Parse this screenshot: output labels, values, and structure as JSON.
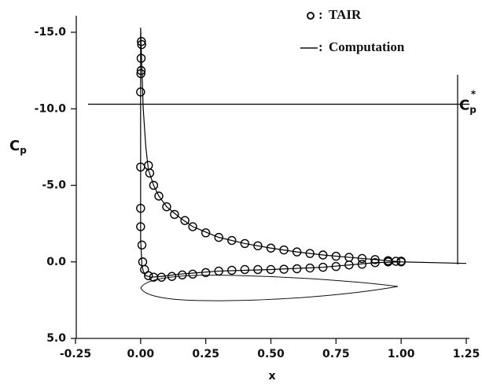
{
  "chart_data": {
    "type": "scatter_line",
    "xlabel": "x",
    "ylabel": {
      "base": "C",
      "sub": "p"
    },
    "xlim": [
      -0.25,
      1.25
    ],
    "ylim": [
      -15,
      5
    ],
    "y_inverted": true,
    "xticks": [
      {
        "value": -0.25,
        "label": "-0.25"
      },
      {
        "value": 0,
        "label": "0.00"
      },
      {
        "value": 0.25,
        "label": "0.25"
      },
      {
        "value": 0.5,
        "label": "0.50"
      },
      {
        "value": 0.75,
        "label": "0.75"
      },
      {
        "value": 1,
        "label": "1.00"
      },
      {
        "value": 1.25,
        "label": "1.25"
      }
    ],
    "yticks": [
      {
        "value": -15,
        "label": "-15.0"
      },
      {
        "value": -10,
        "label": "-10.0"
      },
      {
        "value": -5,
        "label": "-5.0"
      },
      {
        "value": 0,
        "label": "0.0"
      },
      {
        "value": 5,
        "label": "5.0"
      }
    ],
    "legend_separator": ":",
    "reference_line": {
      "value": -10.3,
      "label": {
        "base": "C",
        "sub": "p",
        "sup": "*"
      }
    },
    "series": [
      {
        "name": "TAIR",
        "kind": "scatter",
        "color": "#000000",
        "x": [
          0.003,
          0.004,
          0.002,
          0.001,
          0.0,
          0.002,
          0.0,
          0.03,
          0.035,
          0.05,
          0.07,
          0.1,
          0.13,
          0.17,
          0.2,
          0.25,
          0.3,
          0.35,
          0.4,
          0.45,
          0.5,
          0.55,
          0.6,
          0.65,
          0.7,
          0.75,
          0.8,
          0.85,
          0.9,
          0.95,
          0.98,
          1.0,
          0.0,
          0.0,
          0.005,
          0.008,
          0.015,
          0.03,
          0.05,
          0.08,
          0.12,
          0.16,
          0.2,
          0.25,
          0.3,
          0.35,
          0.4,
          0.45,
          0.5,
          0.55,
          0.6,
          0.65,
          0.7,
          0.75,
          0.8,
          0.85,
          0.9,
          0.95,
          1.0
        ],
        "values": [
          -14.4,
          -14.2,
          -13.3,
          -12.3,
          -11.1,
          -12.5,
          -6.2,
          -6.3,
          -5.8,
          -5.0,
          -4.3,
          -3.6,
          -3.1,
          -2.7,
          -2.3,
          -1.9,
          -1.6,
          -1.4,
          -1.2,
          -1.05,
          -0.9,
          -0.78,
          -0.65,
          -0.55,
          -0.45,
          -0.37,
          -0.3,
          -0.22,
          -0.15,
          -0.08,
          -0.04,
          0.0,
          -3.5,
          -2.3,
          -1.1,
          0.0,
          0.5,
          0.9,
          1.0,
          1.0,
          0.95,
          0.85,
          0.8,
          0.7,
          0.6,
          0.55,
          0.5,
          0.5,
          0.5,
          0.48,
          0.45,
          0.4,
          0.35,
          0.3,
          0.2,
          0.15,
          0.05,
          0.0,
          -0.05
        ]
      },
      {
        "name": "Computation",
        "kind": "line",
        "color": "#000000",
        "x": [
          1.25,
          1.0,
          0.9,
          0.8,
          0.7,
          0.6,
          0.5,
          0.4,
          0.3,
          0.2,
          0.15,
          0.1,
          0.07,
          0.05,
          0.03,
          0.02,
          0.01,
          0.005,
          0.0,
          0.0,
          0.005,
          0.01,
          0.02,
          0.04,
          0.08,
          0.15,
          0.3,
          0.5,
          0.7,
          0.9,
          1.0
        ],
        "values": [
          0.1,
          0.0,
          -0.15,
          -0.3,
          -0.45,
          -0.65,
          -0.9,
          -1.2,
          -1.6,
          -2.3,
          -2.9,
          -3.6,
          -4.3,
          -5.0,
          -6.0,
          -7.5,
          -10.0,
          -12.5,
          -15.3,
          -1.5,
          0.2,
          0.6,
          0.9,
          1.0,
          0.95,
          0.8,
          0.6,
          0.5,
          0.35,
          0.05,
          0.0
        ]
      }
    ]
  }
}
